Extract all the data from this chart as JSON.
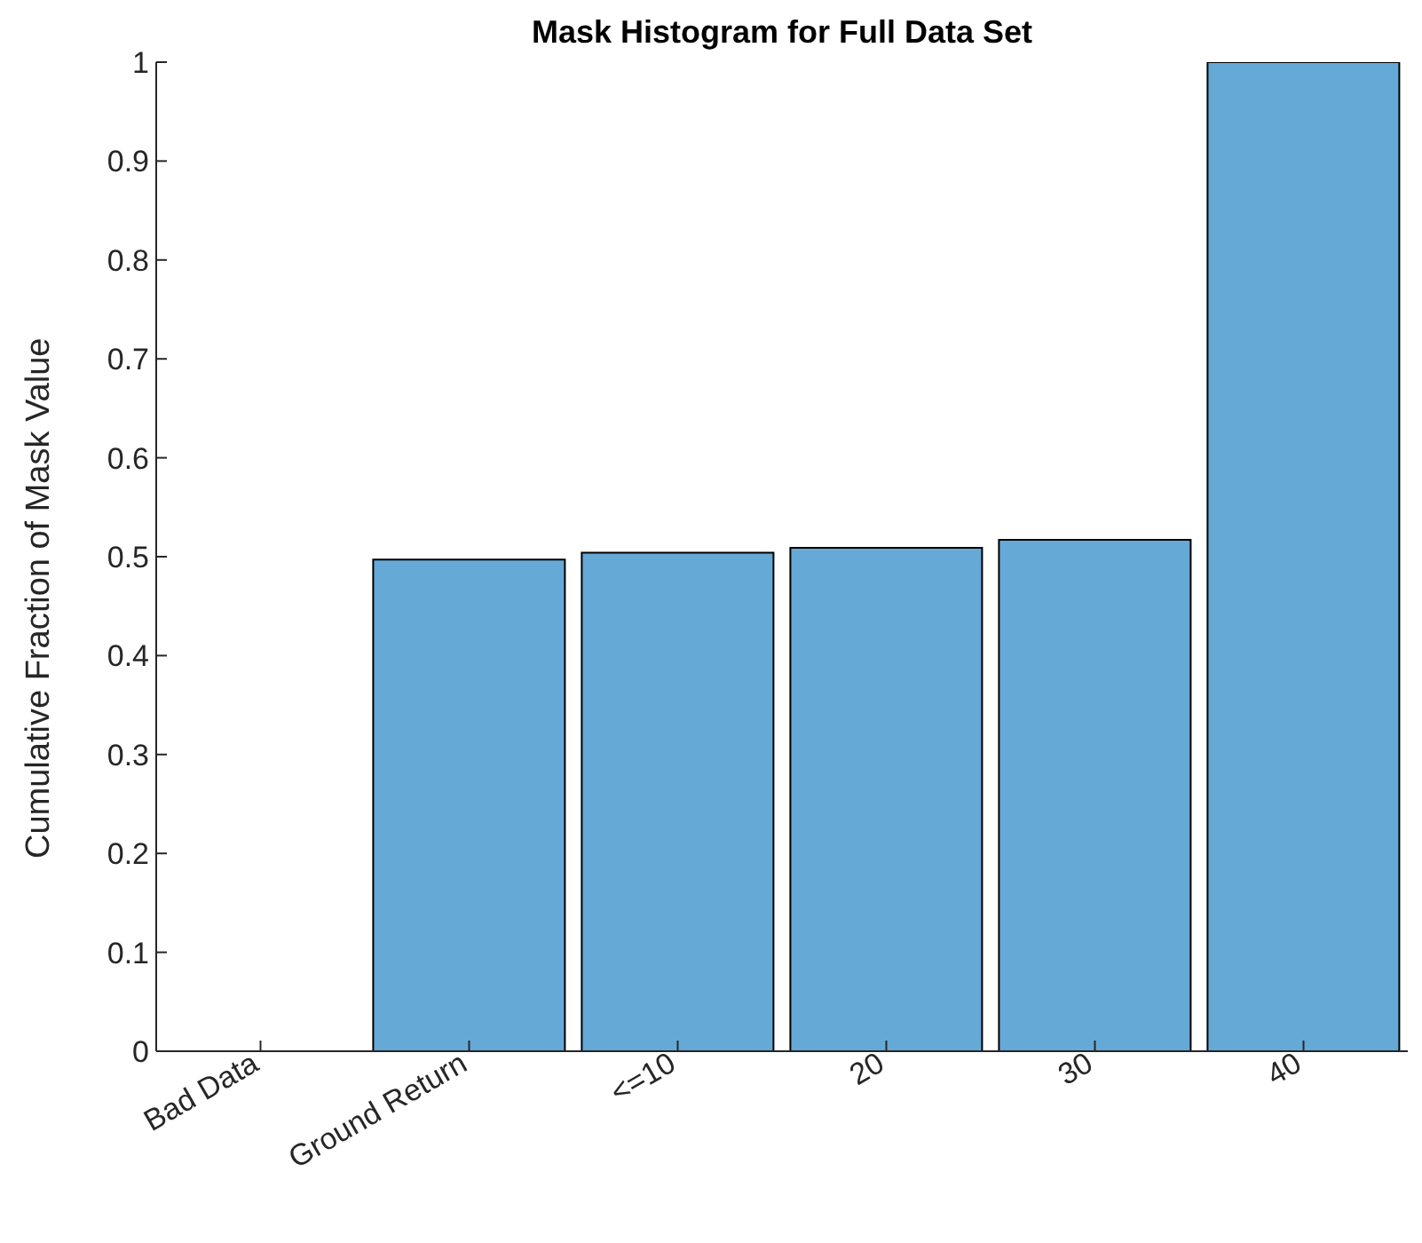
{
  "chart_data": {
    "type": "bar",
    "title": "Mask Histogram for Full Data Set",
    "ylabel": "Cumulative Fraction of Mask Value",
    "categories": [
      "Bad Data",
      "Ground Return",
      "<=10",
      "20",
      "30",
      "40"
    ],
    "values": [
      0,
      0.497,
      0.504,
      0.509,
      0.517,
      1
    ],
    "color": "#65a9d7",
    "ylim": [
      0,
      1
    ],
    "yticks": [
      0,
      0.1,
      0.2,
      0.3,
      0.4,
      0.5,
      0.6,
      0.7,
      0.8,
      0.9,
      1
    ],
    "grid": false,
    "legend": false
  }
}
